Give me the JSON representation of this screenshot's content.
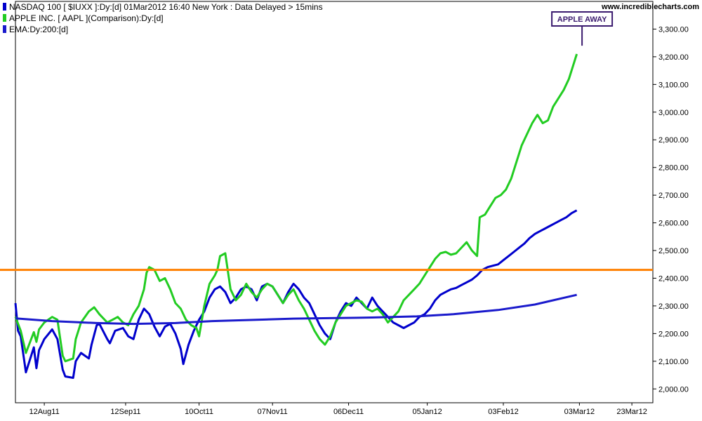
{
  "chart_data": {
    "type": "line",
    "source_label": "www.incrediblecharts.com",
    "ylim": [
      1950,
      3400
    ],
    "y_ticks": [
      2000,
      2100,
      2200,
      2300,
      2400,
      2500,
      2600,
      2700,
      2800,
      2900,
      3000,
      3100,
      3200,
      3300
    ],
    "y_tick_labels": [
      "2,000.00",
      "2,100.00",
      "2,200.00",
      "2,300.00",
      "2,400.00",
      "2,500.00",
      "2,600.00",
      "2,700.00",
      "2,800.00",
      "2,900.00",
      "3,000.00",
      "3,100.00",
      "3,200.00",
      "3,300.00"
    ],
    "x_start": "2011-08-01",
    "x_end": "2012-03-31",
    "x_ticks": [
      "2011-08-12",
      "2011-09-12",
      "2011-10-10",
      "2011-11-07",
      "2011-12-06",
      "2012-01-05",
      "2012-02-03",
      "2012-03-03",
      "2012-03-23"
    ],
    "x_tick_labels": [
      "12Aug11",
      "12Sep11",
      "10Oct11",
      "07Nov11",
      "06Dec11",
      "05Jan12",
      "03Feb12",
      "03Mar12",
      "23Mar12"
    ],
    "horizontal_line": {
      "y": 2430,
      "color": "#ff8000"
    },
    "annotation": {
      "text": "APPLE AWAY",
      "date": "2012-03-04",
      "y": 3240
    },
    "series": [
      {
        "name": "NASDAQ 100 [ $IUXX ]:Dy:[d]  01Mar2012 16:40 New York : Data Delayed > 15mins",
        "color": "#0000cc",
        "points": [
          [
            "2011-08-01",
            2310
          ],
          [
            "2011-08-02",
            2210
          ],
          [
            "2011-08-03",
            2190
          ],
          [
            "2011-08-05",
            2060
          ],
          [
            "2011-08-08",
            2150
          ],
          [
            "2011-08-09",
            2075
          ],
          [
            "2011-08-10",
            2140
          ],
          [
            "2011-08-11",
            2160
          ],
          [
            "2011-08-12",
            2180
          ],
          [
            "2011-08-15",
            2215
          ],
          [
            "2011-08-17",
            2180
          ],
          [
            "2011-08-19",
            2070
          ],
          [
            "2011-08-20",
            2045
          ],
          [
            "2011-08-23",
            2040
          ],
          [
            "2011-08-24",
            2100
          ],
          [
            "2011-08-26",
            2130
          ],
          [
            "2011-08-29",
            2110
          ],
          [
            "2011-08-30",
            2160
          ],
          [
            "2011-09-01",
            2230
          ],
          [
            "2011-09-02",
            2235
          ],
          [
            "2011-09-05",
            2180
          ],
          [
            "2011-09-06",
            2165
          ],
          [
            "2011-09-08",
            2210
          ],
          [
            "2011-09-11",
            2220
          ],
          [
            "2011-09-13",
            2190
          ],
          [
            "2011-09-15",
            2180
          ],
          [
            "2011-09-17",
            2250
          ],
          [
            "2011-09-19",
            2290
          ],
          [
            "2011-09-21",
            2270
          ],
          [
            "2011-09-23",
            2225
          ],
          [
            "2011-09-25",
            2190
          ],
          [
            "2011-09-27",
            2225
          ],
          [
            "2011-09-29",
            2235
          ],
          [
            "2011-10-01",
            2200
          ],
          [
            "2011-10-03",
            2145
          ],
          [
            "2011-10-04",
            2090
          ],
          [
            "2011-10-06",
            2160
          ],
          [
            "2011-10-08",
            2210
          ],
          [
            "2011-10-10",
            2250
          ],
          [
            "2011-10-12",
            2280
          ],
          [
            "2011-10-14",
            2330
          ],
          [
            "2011-10-16",
            2360
          ],
          [
            "2011-10-18",
            2370
          ],
          [
            "2011-10-20",
            2350
          ],
          [
            "2011-10-22",
            2310
          ],
          [
            "2011-10-24",
            2330
          ],
          [
            "2011-10-26",
            2360
          ],
          [
            "2011-10-28",
            2370
          ],
          [
            "2011-10-30",
            2360
          ],
          [
            "2011-11-01",
            2320
          ],
          [
            "2011-11-03",
            2370
          ],
          [
            "2011-11-05",
            2380
          ],
          [
            "2011-11-07",
            2370
          ],
          [
            "2011-11-09",
            2340
          ],
          [
            "2011-11-11",
            2310
          ],
          [
            "2011-11-13",
            2350
          ],
          [
            "2011-11-15",
            2380
          ],
          [
            "2011-11-17",
            2360
          ],
          [
            "2011-11-19",
            2330
          ],
          [
            "2011-11-21",
            2310
          ],
          [
            "2011-11-23",
            2270
          ],
          [
            "2011-11-25",
            2230
          ],
          [
            "2011-11-27",
            2200
          ],
          [
            "2011-11-29",
            2180
          ],
          [
            "2011-12-01",
            2240
          ],
          [
            "2011-12-03",
            2280
          ],
          [
            "2011-12-05",
            2310
          ],
          [
            "2011-12-07",
            2300
          ],
          [
            "2011-12-09",
            2330
          ],
          [
            "2011-12-11",
            2310
          ],
          [
            "2011-12-13",
            2290
          ],
          [
            "2011-12-15",
            2330
          ],
          [
            "2011-12-17",
            2300
          ],
          [
            "2011-12-19",
            2280
          ],
          [
            "2011-12-21",
            2260
          ],
          [
            "2011-12-23",
            2240
          ],
          [
            "2011-12-25",
            2230
          ],
          [
            "2011-12-27",
            2220
          ],
          [
            "2011-12-29",
            2230
          ],
          [
            "2011-12-31",
            2240
          ],
          [
            "2012-01-02",
            2260
          ],
          [
            "2012-01-04",
            2270
          ],
          [
            "2012-01-06",
            2290
          ],
          [
            "2012-01-08",
            2320
          ],
          [
            "2012-01-10",
            2340
          ],
          [
            "2012-01-12",
            2350
          ],
          [
            "2012-01-14",
            2360
          ],
          [
            "2012-01-16",
            2365
          ],
          [
            "2012-01-18",
            2375
          ],
          [
            "2012-01-20",
            2385
          ],
          [
            "2012-01-22",
            2395
          ],
          [
            "2012-01-24",
            2410
          ],
          [
            "2012-01-26",
            2430
          ],
          [
            "2012-01-28",
            2440
          ],
          [
            "2012-01-30",
            2445
          ],
          [
            "2012-02-01",
            2450
          ],
          [
            "2012-02-03",
            2465
          ],
          [
            "2012-02-05",
            2480
          ],
          [
            "2012-02-07",
            2495
          ],
          [
            "2012-02-09",
            2510
          ],
          [
            "2012-02-11",
            2525
          ],
          [
            "2012-02-13",
            2545
          ],
          [
            "2012-02-15",
            2560
          ],
          [
            "2012-02-17",
            2570
          ],
          [
            "2012-02-19",
            2580
          ],
          [
            "2012-02-21",
            2590
          ],
          [
            "2012-02-23",
            2600
          ],
          [
            "2012-02-25",
            2610
          ],
          [
            "2012-02-27",
            2620
          ],
          [
            "2012-02-29",
            2635
          ],
          [
            "2012-03-02",
            2645
          ]
        ]
      },
      {
        "name": "APPLE INC. [ AAPL ](Comparison):Dy:[d]",
        "color": "#22cc22",
        "points": [
          [
            "2011-08-01",
            2260
          ],
          [
            "2011-08-03",
            2210
          ],
          [
            "2011-08-05",
            2130
          ],
          [
            "2011-08-08",
            2205
          ],
          [
            "2011-08-09",
            2170
          ],
          [
            "2011-08-10",
            2215
          ],
          [
            "2011-08-12",
            2240
          ],
          [
            "2011-08-15",
            2260
          ],
          [
            "2011-08-17",
            2250
          ],
          [
            "2011-08-19",
            2120
          ],
          [
            "2011-08-20",
            2100
          ],
          [
            "2011-08-23",
            2110
          ],
          [
            "2011-08-24",
            2180
          ],
          [
            "2011-08-26",
            2240
          ],
          [
            "2011-08-29",
            2280
          ],
          [
            "2011-08-31",
            2295
          ],
          [
            "2011-09-02",
            2270
          ],
          [
            "2011-09-05",
            2240
          ],
          [
            "2011-09-07",
            2250
          ],
          [
            "2011-09-09",
            2260
          ],
          [
            "2011-09-11",
            2240
          ],
          [
            "2011-09-13",
            2230
          ],
          [
            "2011-09-15",
            2270
          ],
          [
            "2011-09-17",
            2300
          ],
          [
            "2011-09-19",
            2360
          ],
          [
            "2011-09-20",
            2420
          ],
          [
            "2011-09-21",
            2440
          ],
          [
            "2011-09-23",
            2430
          ],
          [
            "2011-09-25",
            2390
          ],
          [
            "2011-09-27",
            2400
          ],
          [
            "2011-09-29",
            2360
          ],
          [
            "2011-10-01",
            2310
          ],
          [
            "2011-10-03",
            2290
          ],
          [
            "2011-10-05",
            2250
          ],
          [
            "2011-10-07",
            2230
          ],
          [
            "2011-10-09",
            2220
          ],
          [
            "2011-10-10",
            2190
          ],
          [
            "2011-10-12",
            2300
          ],
          [
            "2011-10-14",
            2380
          ],
          [
            "2011-10-16",
            2410
          ],
          [
            "2011-10-17",
            2430
          ],
          [
            "2011-10-18",
            2480
          ],
          [
            "2011-10-20",
            2490
          ],
          [
            "2011-10-22",
            2360
          ],
          [
            "2011-10-24",
            2320
          ],
          [
            "2011-10-26",
            2340
          ],
          [
            "2011-10-28",
            2380
          ],
          [
            "2011-10-30",
            2350
          ],
          [
            "2011-11-01",
            2330
          ],
          [
            "2011-11-03",
            2360
          ],
          [
            "2011-11-05",
            2380
          ],
          [
            "2011-11-07",
            2370
          ],
          [
            "2011-11-09",
            2340
          ],
          [
            "2011-11-11",
            2310
          ],
          [
            "2011-11-13",
            2340
          ],
          [
            "2011-11-15",
            2360
          ],
          [
            "2011-11-17",
            2320
          ],
          [
            "2011-11-19",
            2290
          ],
          [
            "2011-11-21",
            2250
          ],
          [
            "2011-11-23",
            2210
          ],
          [
            "2011-11-25",
            2180
          ],
          [
            "2011-11-27",
            2160
          ],
          [
            "2011-11-29",
            2190
          ],
          [
            "2011-12-01",
            2240
          ],
          [
            "2011-12-03",
            2270
          ],
          [
            "2011-12-05",
            2300
          ],
          [
            "2011-12-07",
            2310
          ],
          [
            "2011-12-09",
            2320
          ],
          [
            "2011-12-11",
            2315
          ],
          [
            "2011-12-13",
            2290
          ],
          [
            "2011-12-15",
            2280
          ],
          [
            "2011-12-17",
            2290
          ],
          [
            "2011-12-19",
            2270
          ],
          [
            "2011-12-21",
            2240
          ],
          [
            "2011-12-23",
            2260
          ],
          [
            "2011-12-25",
            2280
          ],
          [
            "2011-12-27",
            2320
          ],
          [
            "2011-12-29",
            2340
          ],
          [
            "2011-12-31",
            2360
          ],
          [
            "2012-01-02",
            2380
          ],
          [
            "2012-01-04",
            2410
          ],
          [
            "2012-01-06",
            2440
          ],
          [
            "2012-01-08",
            2470
          ],
          [
            "2012-01-10",
            2490
          ],
          [
            "2012-01-12",
            2495
          ],
          [
            "2012-01-14",
            2485
          ],
          [
            "2012-01-16",
            2490
          ],
          [
            "2012-01-18",
            2510
          ],
          [
            "2012-01-20",
            2530
          ],
          [
            "2012-01-22",
            2500
          ],
          [
            "2012-01-24",
            2480
          ],
          [
            "2012-01-25",
            2620
          ],
          [
            "2012-01-27",
            2630
          ],
          [
            "2012-01-29",
            2660
          ],
          [
            "2012-01-31",
            2690
          ],
          [
            "2012-02-02",
            2700
          ],
          [
            "2012-02-04",
            2720
          ],
          [
            "2012-02-06",
            2760
          ],
          [
            "2012-02-08",
            2820
          ],
          [
            "2012-02-10",
            2880
          ],
          [
            "2012-02-12",
            2920
          ],
          [
            "2012-02-14",
            2960
          ],
          [
            "2012-02-16",
            2990
          ],
          [
            "2012-02-18",
            2960
          ],
          [
            "2012-02-20",
            2970
          ],
          [
            "2012-02-22",
            3020
          ],
          [
            "2012-02-24",
            3050
          ],
          [
            "2012-02-26",
            3080
          ],
          [
            "2012-02-28",
            3120
          ],
          [
            "2012-03-01",
            3180
          ],
          [
            "2012-03-02",
            3210
          ]
        ]
      },
      {
        "name": "EMA:Dy:200:[d]",
        "color": "#1a1acc",
        "points": [
          [
            "2011-08-01",
            2255
          ],
          [
            "2011-08-15",
            2245
          ],
          [
            "2011-09-01",
            2238
          ],
          [
            "2011-09-15",
            2235
          ],
          [
            "2011-10-01",
            2238
          ],
          [
            "2011-10-15",
            2245
          ],
          [
            "2011-11-01",
            2250
          ],
          [
            "2011-11-15",
            2254
          ],
          [
            "2011-12-01",
            2256
          ],
          [
            "2011-12-15",
            2258
          ],
          [
            "2012-01-01",
            2262
          ],
          [
            "2012-01-15",
            2270
          ],
          [
            "2012-02-01",
            2285
          ],
          [
            "2012-02-15",
            2305
          ],
          [
            "2012-03-02",
            2340
          ]
        ]
      }
    ]
  }
}
